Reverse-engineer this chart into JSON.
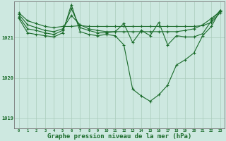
{
  "background_color": "#cde8e0",
  "plot_bg_color": "#cde8e0",
  "grid_color": "#aaccbb",
  "line_color": "#1a6b2a",
  "marker_color": "#1a6b2a",
  "xlabel": "Graphe pression niveau de la mer (hPa)",
  "xlabel_fontsize": 6.5,
  "ylim": [
    1018.75,
    1021.9
  ],
  "xlim": [
    -0.5,
    23.5
  ],
  "yticks": [
    1019,
    1020,
    1021
  ],
  "xticks": [
    0,
    1,
    2,
    3,
    4,
    5,
    6,
    7,
    8,
    9,
    10,
    11,
    12,
    13,
    14,
    15,
    16,
    17,
    18,
    19,
    20,
    21,
    22,
    23
  ],
  "series": [
    [
      1021.62,
      1021.42,
      1021.35,
      1021.28,
      1021.25,
      1021.28,
      1021.28,
      1021.3,
      1021.28,
      1021.28,
      1021.28,
      1021.28,
      1021.28,
      1021.28,
      1021.28,
      1021.28,
      1021.28,
      1021.28,
      1021.28,
      1021.28,
      1021.28,
      1021.3,
      1021.38,
      1021.62
    ],
    [
      1021.58,
      1021.32,
      1021.25,
      1021.18,
      1021.15,
      1021.22,
      1021.55,
      1021.32,
      1021.22,
      1021.18,
      1021.15,
      1021.15,
      1021.15,
      1021.15,
      1021.15,
      1021.15,
      1021.15,
      1021.15,
      1021.15,
      1021.18,
      1021.22,
      1021.32,
      1021.48,
      1021.65
    ],
    [
      1021.52,
      1021.22,
      1021.18,
      1021.12,
      1021.08,
      1021.18,
      1021.72,
      1021.25,
      1021.18,
      1021.12,
      1021.12,
      1021.15,
      1021.35,
      1020.88,
      1021.18,
      1021.05,
      1021.38,
      1020.82,
      1021.05,
      1021.02,
      1021.02,
      1021.1,
      1021.42,
      1021.68
    ],
    [
      1021.48,
      1021.12,
      1021.08,
      1021.05,
      1021.02,
      1021.12,
      1021.82,
      1021.15,
      1021.08,
      1021.05,
      1021.08,
      1021.05,
      1020.82,
      1019.72,
      1019.55,
      1019.42,
      1019.58,
      1019.82,
      1020.32,
      1020.45,
      1020.62,
      1021.05,
      1021.28,
      1021.68
    ]
  ]
}
